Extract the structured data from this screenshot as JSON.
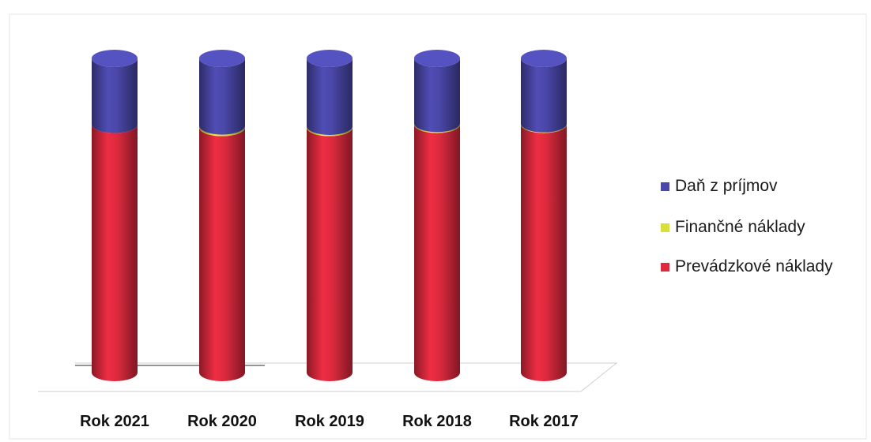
{
  "chart_data": {
    "type": "bar",
    "stacked": true,
    "style": "3d-cylinder",
    "categories": [
      "Rok 2021",
      "Rok 2020",
      "Rok 2019",
      "Rok 2018",
      "Rok 2017"
    ],
    "series": [
      {
        "name": "Prevádzkové náklady",
        "values": [
          79,
          78,
          78,
          79,
          79
        ],
        "color": "#dd2a3e"
      },
      {
        "name": "Finančné náklady",
        "values": [
          0,
          0.5,
          0.4,
          0.3,
          0.2
        ],
        "color": "#d8df38"
      },
      {
        "name": "Daň z príjmov",
        "values": [
          21,
          21.5,
          21.6,
          20.7,
          20.8
        ],
        "color": "#4a47a8"
      }
    ],
    "ylim": [
      0,
      100
    ],
    "legend_position": "right",
    "grid": false
  }
}
